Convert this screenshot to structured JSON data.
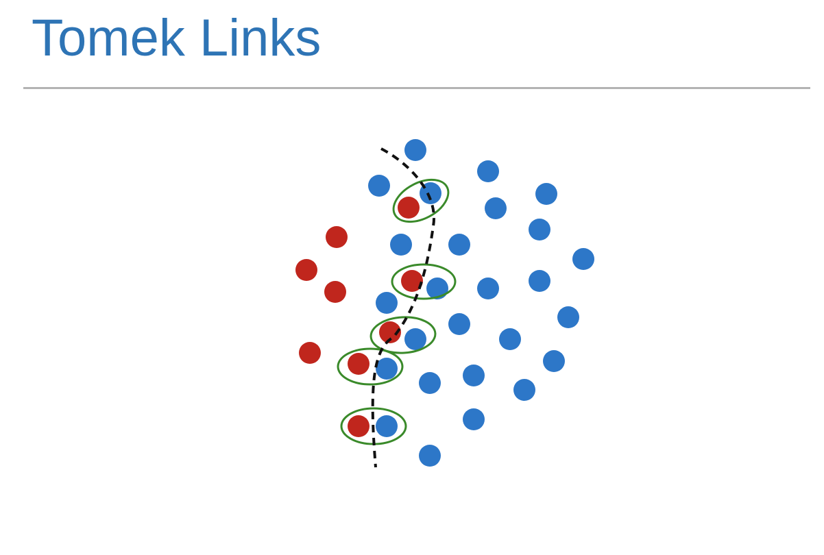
{
  "title": "Tomek Links",
  "colors": {
    "title": "#2e74b5",
    "rule": "#b3b3b3",
    "majority_class": "#2d77c8",
    "minority_class": "#c0261d",
    "tomek_link_outline": "#3a8a2a",
    "decision_boundary": "#111111"
  },
  "diagram": {
    "type": "scatter",
    "classes": [
      "minority",
      "majority"
    ],
    "tomek_link_count": 5
  }
}
